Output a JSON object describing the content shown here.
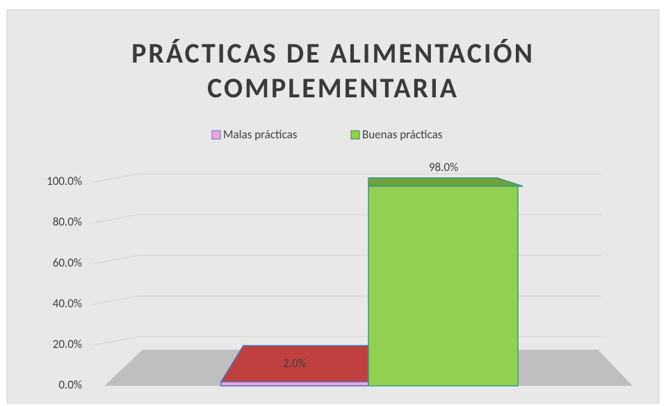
{
  "chart_data": {
    "type": "bar3d",
    "title": "PRÁCTICAS DE ALIMENTACIÓN COMPLEMENTARIA",
    "categories": [
      null
    ],
    "series": [
      {
        "name": "Malas prácticas",
        "color": "#f4a3d6",
        "values": [
          2
        ],
        "value_labels": [
          "2.0%"
        ]
      },
      {
        "name": "Buenas prácticas",
        "color": "#92d050",
        "values": [
          98
        ],
        "value_labels": [
          "98.0%"
        ]
      }
    ],
    "ylim": [
      0,
      100
    ],
    "yticks": [
      {
        "value": 0,
        "label": "0.0%"
      },
      {
        "value": 20,
        "label": "20.0%"
      },
      {
        "value": 40,
        "label": "40.0%"
      },
      {
        "value": 60,
        "label": "60.0%"
      },
      {
        "value": 80,
        "label": "80.0%"
      },
      {
        "value": 100,
        "label": "100.0%"
      }
    ],
    "grid": true,
    "legend": "top"
  }
}
